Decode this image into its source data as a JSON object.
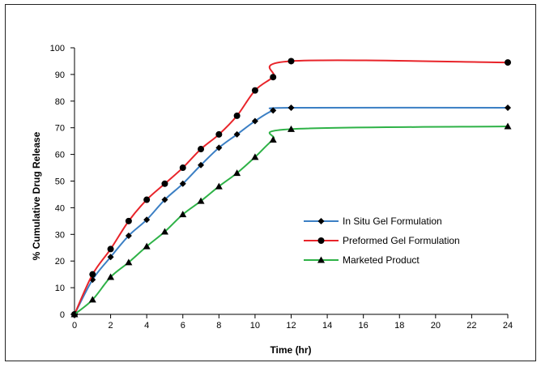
{
  "chart_data": {
    "type": "line",
    "xlabel": "Time (hr)",
    "ylabel": "% Cumulative Drug Release",
    "xlim": [
      0,
      24
    ],
    "ylim": [
      0,
      100
    ],
    "xticks": [
      0,
      2,
      4,
      6,
      8,
      10,
      12,
      14,
      16,
      18,
      20,
      22,
      24
    ],
    "yticks": [
      0,
      10,
      20,
      30,
      40,
      50,
      60,
      70,
      80,
      90,
      100
    ],
    "grid": false,
    "legend_position": "lower-right",
    "series": [
      {
        "name": "In Situ Gel Formulation",
        "color": "#3B7FC4",
        "marker": "diamond",
        "x": [
          0,
          1,
          2,
          3,
          4,
          5,
          6,
          7,
          8,
          9,
          10,
          11,
          12,
          24
        ],
        "y": [
          0,
          13,
          21.5,
          29.5,
          35.5,
          43,
          49,
          56,
          62.5,
          67.5,
          72.5,
          76.5,
          77.5,
          77.5
        ]
      },
      {
        "name": "Preformed Gel Formulation",
        "color": "#E8242A",
        "marker": "circle",
        "x": [
          0,
          1,
          2,
          3,
          4,
          5,
          6,
          7,
          8,
          9,
          10,
          11,
          12,
          24
        ],
        "y": [
          0,
          15,
          24.5,
          35,
          43,
          49,
          55,
          62,
          67.5,
          74.5,
          84,
          89,
          95,
          94.5
        ]
      },
      {
        "name": "Marketed Product",
        "color": "#2EB247",
        "marker": "triangle",
        "x": [
          0,
          1,
          2,
          3,
          4,
          5,
          6,
          7,
          8,
          9,
          10,
          11,
          12,
          24
        ],
        "y": [
          0,
          5.5,
          14,
          19.5,
          25.5,
          31,
          37.5,
          42.5,
          48,
          53,
          59,
          65.5,
          69.5,
          70.5
        ]
      }
    ]
  }
}
